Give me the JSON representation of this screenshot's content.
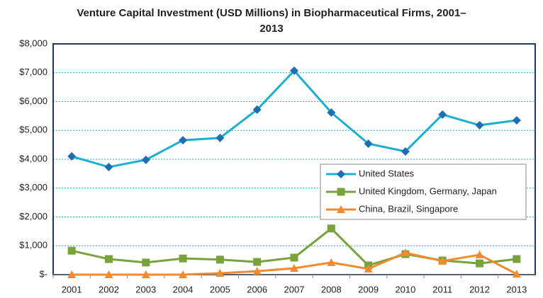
{
  "chart_data": {
    "type": "line",
    "title": "Venture Capital Investment (USD Millions) in Biopharmaceutical Firms, 2001–2013",
    "categories": [
      "2001",
      "2002",
      "2003",
      "2004",
      "2005",
      "2006",
      "2007",
      "2008",
      "2009",
      "2010",
      "2011",
      "2012",
      "2013"
    ],
    "series": [
      {
        "name": "United States",
        "color": "#1ab0cf",
        "marker": "diamond",
        "marker_color": "#1f6db3",
        "values": [
          4100,
          3730,
          3980,
          4660,
          4740,
          5720,
          7070,
          5620,
          4540,
          4270,
          5550,
          5180,
          5350
        ]
      },
      {
        "name": "United Kingdom, Germany, Japan",
        "color": "#77a33a",
        "marker": "square",
        "marker_color": "#77a33a",
        "values": [
          830,
          540,
          420,
          560,
          520,
          440,
          590,
          1600,
          320,
          710,
          490,
          390,
          540
        ]
      },
      {
        "name": "China, Brazil, Singapore",
        "color": "#f28a30",
        "marker": "triangle",
        "marker_color": "#f28a30",
        "values": [
          0,
          0,
          0,
          0,
          50,
          120,
          220,
          420,
          200,
          760,
          470,
          690,
          20
        ]
      }
    ],
    "ylim": [
      0,
      8000
    ],
    "yticks": [
      {
        "value": 0,
        "label": "$-"
      },
      {
        "value": 1000,
        "label": "$1,000"
      },
      {
        "value": 2000,
        "label": "$2,000"
      },
      {
        "value": 3000,
        "label": "$3,000"
      },
      {
        "value": 4000,
        "label": "$4,000"
      },
      {
        "value": 5000,
        "label": "$5,000"
      },
      {
        "value": 6000,
        "label": "$6,000"
      },
      {
        "value": 7000,
        "label": "$7,000"
      },
      {
        "value": 8000,
        "label": "$8,000"
      }
    ],
    "grid": true,
    "legend": "right"
  }
}
